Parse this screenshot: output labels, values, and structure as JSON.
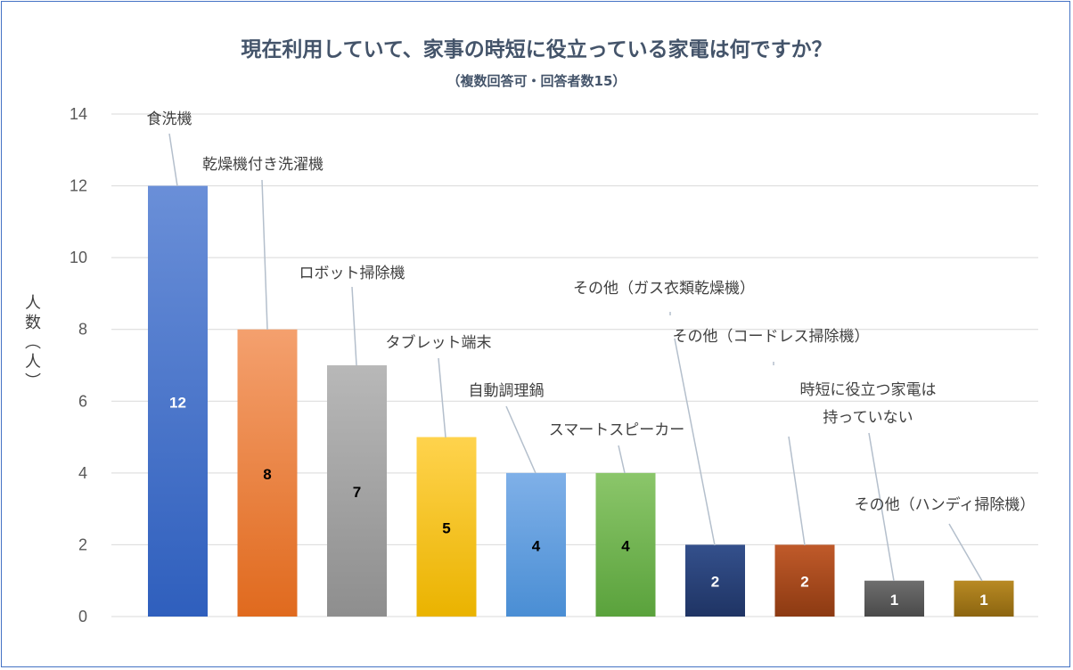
{
  "chart_data": {
    "type": "bar",
    "title": "現在利用していて、家事の時短に役立っている家電は何ですか？",
    "subtitle": "（複数回答可・回答者数15）",
    "ylabel": "人数（人）",
    "xlabel": "",
    "ylim": [
      0,
      14
    ],
    "yticks": [
      0,
      2,
      4,
      6,
      8,
      10,
      12,
      14
    ],
    "grid": true,
    "categories": [
      "食洗機",
      "乾燥機付き洗濯機",
      "ロボット掃除機",
      "タブレット端末",
      "自動調理鍋",
      "スマートスピーカー",
      "その他（ガス衣類乾燥機）",
      "その他（コードレス掃除機）",
      "時短に役立つ家電は 持っていない",
      "その他（ハンディ掃除機）"
    ],
    "values": [
      12,
      8,
      7,
      5,
      4,
      4,
      2,
      2,
      1,
      1
    ],
    "data_labels": [
      "12",
      "8",
      "7",
      "5",
      "4",
      "4",
      "2",
      "2",
      "1",
      "1"
    ],
    "colors": [
      [
        "#6a8fd8",
        "#2f5fbd"
      ],
      [
        "#f4a06e",
        "#e06a1e"
      ],
      [
        "#b8b8b8",
        "#8e8e8e"
      ],
      [
        "#ffd34d",
        "#eab300"
      ],
      [
        "#7fb0e8",
        "#4a8ed4"
      ],
      [
        "#8bc66a",
        "#5aa23c"
      ],
      [
        "#34508c",
        "#1f3464"
      ],
      [
        "#c05a2a",
        "#8c3a12"
      ],
      [
        "#6e6e6e",
        "#4a4a4a"
      ],
      [
        "#b88a24",
        "#8c6510"
      ]
    ],
    "label_colors": [
      "#ffffff",
      "#000000",
      "#000000",
      "#000000",
      "#000000",
      "#000000",
      "#ffffff",
      "#ffffff",
      "#ffffff",
      "#ffffff"
    ]
  }
}
